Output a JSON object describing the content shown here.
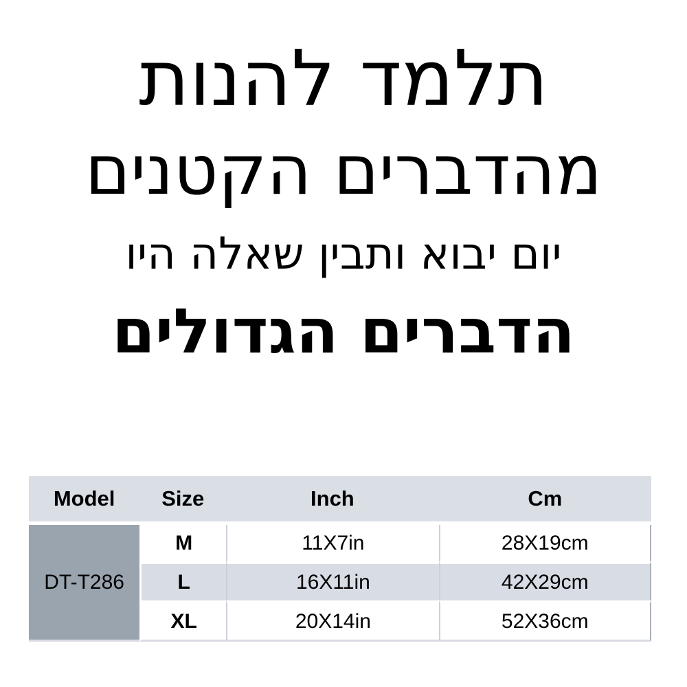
{
  "quote": {
    "lines": [
      "תלמד להנות",
      "מהדברים הקטנים",
      "יום יבוא ותבין שאלה היו",
      "הדברים הגדולים"
    ]
  },
  "size_table": {
    "headers": [
      "Model",
      "Size",
      "Inch",
      "Cm"
    ],
    "model": "DT-T286",
    "rows": [
      {
        "size": "M",
        "inch": "11X7in",
        "cm": "28X19cm"
      },
      {
        "size": "L",
        "inch": "16X11in",
        "cm": "42X29cm"
      },
      {
        "size": "XL",
        "inch": "20X14in",
        "cm": "52X36cm"
      }
    ]
  },
  "colors": {
    "page_bg": "#ffffff",
    "text": "#000000",
    "header_bg": "#dadee5",
    "alt_row_bg": "#d8dce4",
    "model_cell_bg": "#9aa4af",
    "column_divider": "#ccd0d7",
    "table_right_border": "#aab0b9",
    "table_bottom_border": "#d9dce2"
  }
}
